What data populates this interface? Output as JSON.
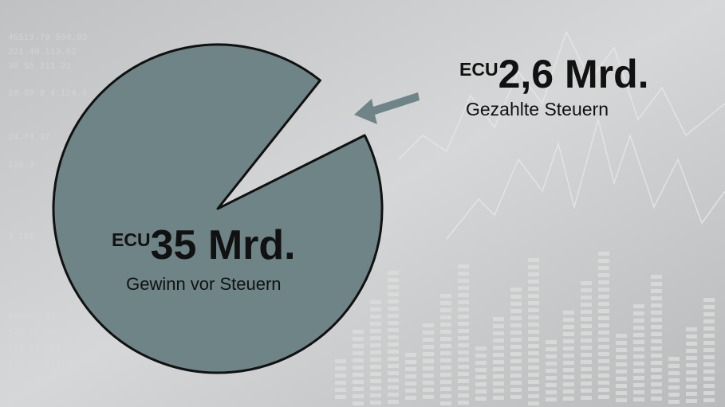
{
  "chart_data": {
    "type": "pie",
    "title": "",
    "slices": [
      {
        "label": "Gewinn vor Steuern",
        "currency": "ECU",
        "amount_text": "35 Mrd.",
        "value": 35,
        "color": "#6e8487"
      },
      {
        "label": "Gezahlte Steuern",
        "currency": "ECU",
        "amount_text": "2,6 Mrd.",
        "value": 2.6,
        "exploded": true,
        "color": "#6e8487"
      }
    ],
    "annotations": {
      "arrow_color": "#6e8487"
    }
  }
}
